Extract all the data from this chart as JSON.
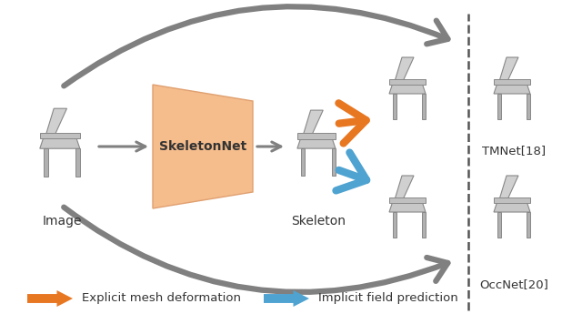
{
  "bg_color": "#ffffff",
  "gray": "#808080",
  "dark_gray": "#555555",
  "orange": "#e87722",
  "blue": "#4fa3d1",
  "trap_color": "#f5bc8c",
  "trap_edge": "#e0a070",
  "skeletonnet_label": "SkeletonNet",
  "label_image": "Image",
  "label_skeleton": "Skeleton",
  "label_tmnet": "TMNet[18]",
  "label_occnet": "OccNet[20]",
  "legend_orange": "Explicit mesh deformation",
  "legend_blue": "Implicit field prediction",
  "figsize": [
    6.4,
    3.56
  ],
  "dpi": 100
}
